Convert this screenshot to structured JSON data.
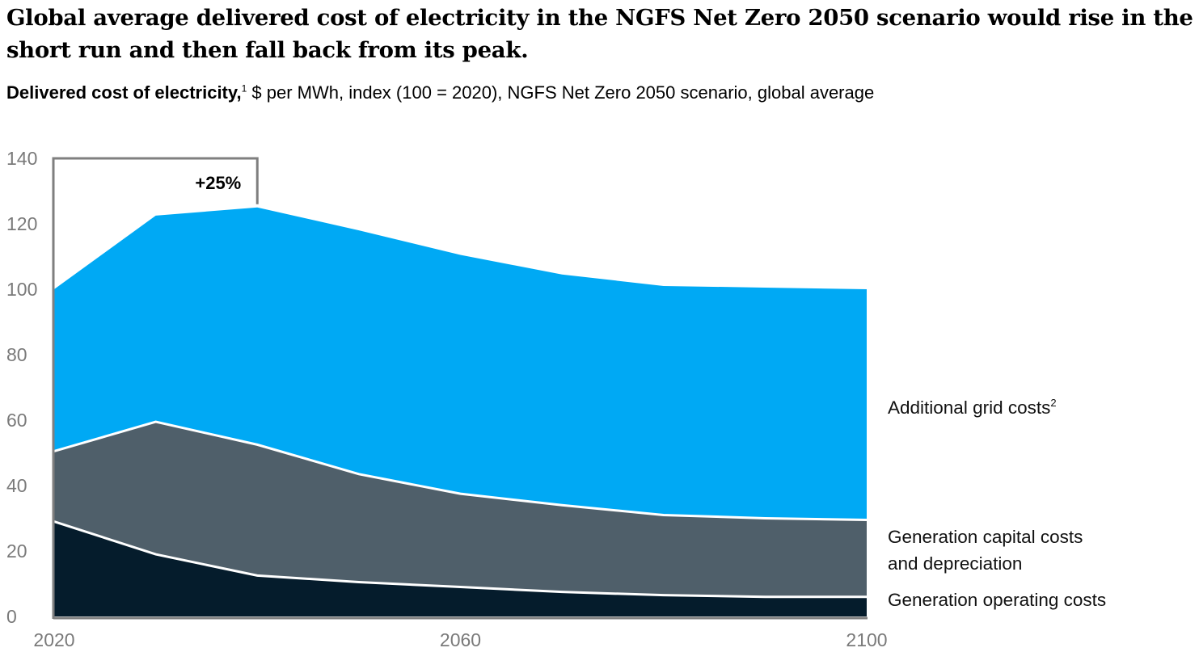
{
  "chart_data": {
    "type": "area",
    "stacked": true,
    "title": "Global average delivered cost of electricity in the NGFS Net Zero 2050 scenario would rise in the short run and then fall back from its peak.",
    "subtitle_bold": "Delivered cost of electricity,",
    "subtitle_footnote": "1",
    "subtitle_rest": " $ per MWh, index (100 = 2020), NGFS Net Zero 2050 scenario, global average",
    "xlabel": "",
    "ylabel": "",
    "x": [
      2020,
      2030,
      2040,
      2050,
      2060,
      2070,
      2080,
      2090,
      2100
    ],
    "xlim": [
      2020,
      2100
    ],
    "ylim": [
      0,
      140
    ],
    "x_ticks": [
      "2020",
      "2060",
      "2100"
    ],
    "x_tick_values": [
      2020,
      2060,
      2100
    ],
    "y_ticks": [
      "0",
      "20",
      "40",
      "60",
      "80",
      "100",
      "120",
      "140"
    ],
    "y_tick_values": [
      0,
      20,
      40,
      60,
      80,
      100,
      120,
      140
    ],
    "grid": false,
    "legend": "right-inline",
    "series": [
      {
        "name": "Generation operating costs",
        "label_lines": [
          "Generation operating costs"
        ],
        "footnote": "",
        "color": "#051c2c",
        "values": [
          29,
          19,
          12.5,
          10.5,
          9,
          7.5,
          6.5,
          6,
          6
        ]
      },
      {
        "name": "Generation capital costs and depreciation",
        "label_lines": [
          "Generation capital costs",
          "and depreciation"
        ],
        "footnote": "",
        "color": "#4f5f6a",
        "values": [
          21.5,
          40.5,
          40,
          33,
          28.5,
          26.5,
          24.5,
          24,
          23.5
        ]
      },
      {
        "name": "Additional grid costs",
        "label_lines": [
          "Additional grid costs"
        ],
        "footnote": "2",
        "color": "#00a9f4",
        "values": [
          49.5,
          63,
          72.5,
          74.5,
          73,
          70.5,
          70,
          70.5,
          70.5
        ]
      }
    ],
    "annotations": [
      {
        "text": "+25%",
        "type": "bracket",
        "from_x": 2020,
        "to_x": 2040,
        "level": 140,
        "to_value": 125
      }
    ]
  },
  "colors": {
    "axis": "#7f7f7f",
    "separator": "#ffffff"
  }
}
